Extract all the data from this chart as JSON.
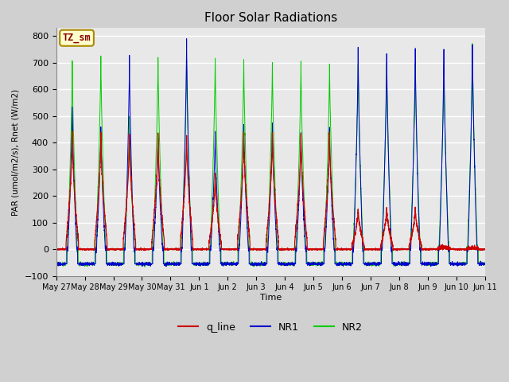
{
  "title": "Floor Solar Radiations",
  "xlabel": "Time",
  "ylabel": "PAR (umol/m2/s), Rnet (W/m2)",
  "ylim": [
    -100,
    830
  ],
  "yticks": [
    -100,
    0,
    100,
    200,
    300,
    400,
    500,
    600,
    700,
    800
  ],
  "date_labels": [
    "May 27",
    "May 28",
    "May 29",
    "May 30",
    "May 31",
    "Jun 1",
    "Jun 2",
    "Jun 3",
    "Jun 4",
    "Jun 5",
    "Jun 6",
    "Jun 7",
    "Jun 8",
    "Jun 9",
    "Jun 10",
    "Jun 11"
  ],
  "legend_labels": [
    "q_line",
    "NR1",
    "NR2"
  ],
  "legend_colors": [
    "#cc0000",
    "#0000cc",
    "#00cc00"
  ],
  "annotation_text": "TZ_sm",
  "annotation_color": "#880000",
  "annotation_bg": "#ffffcc",
  "line_colors": {
    "q_line": "#cc0000",
    "NR1": "#0000cc",
    "NR2": "#00cc00"
  },
  "background_color": "#e8e8e8",
  "plot_bg_color": "#e8e8e8",
  "grid_color": "#ffffff",
  "n_days": 15,
  "day_peak_NR1": [
    535,
    460,
    720,
    420,
    790,
    440,
    470,
    475,
    435,
    450,
    760,
    740,
    755,
    750,
    770
  ],
  "day_peak_NR2": [
    700,
    725,
    505,
    720,
    720,
    720,
    710,
    700,
    700,
    695,
    695,
    695,
    695,
    695,
    770
  ],
  "day_peak_qline": [
    435,
    435,
    430,
    435,
    430,
    280,
    435,
    435,
    435,
    435,
    155,
    155,
    155,
    10,
    5
  ],
  "night_NR1": -55,
  "night_NR2": -55,
  "night_q": 0
}
